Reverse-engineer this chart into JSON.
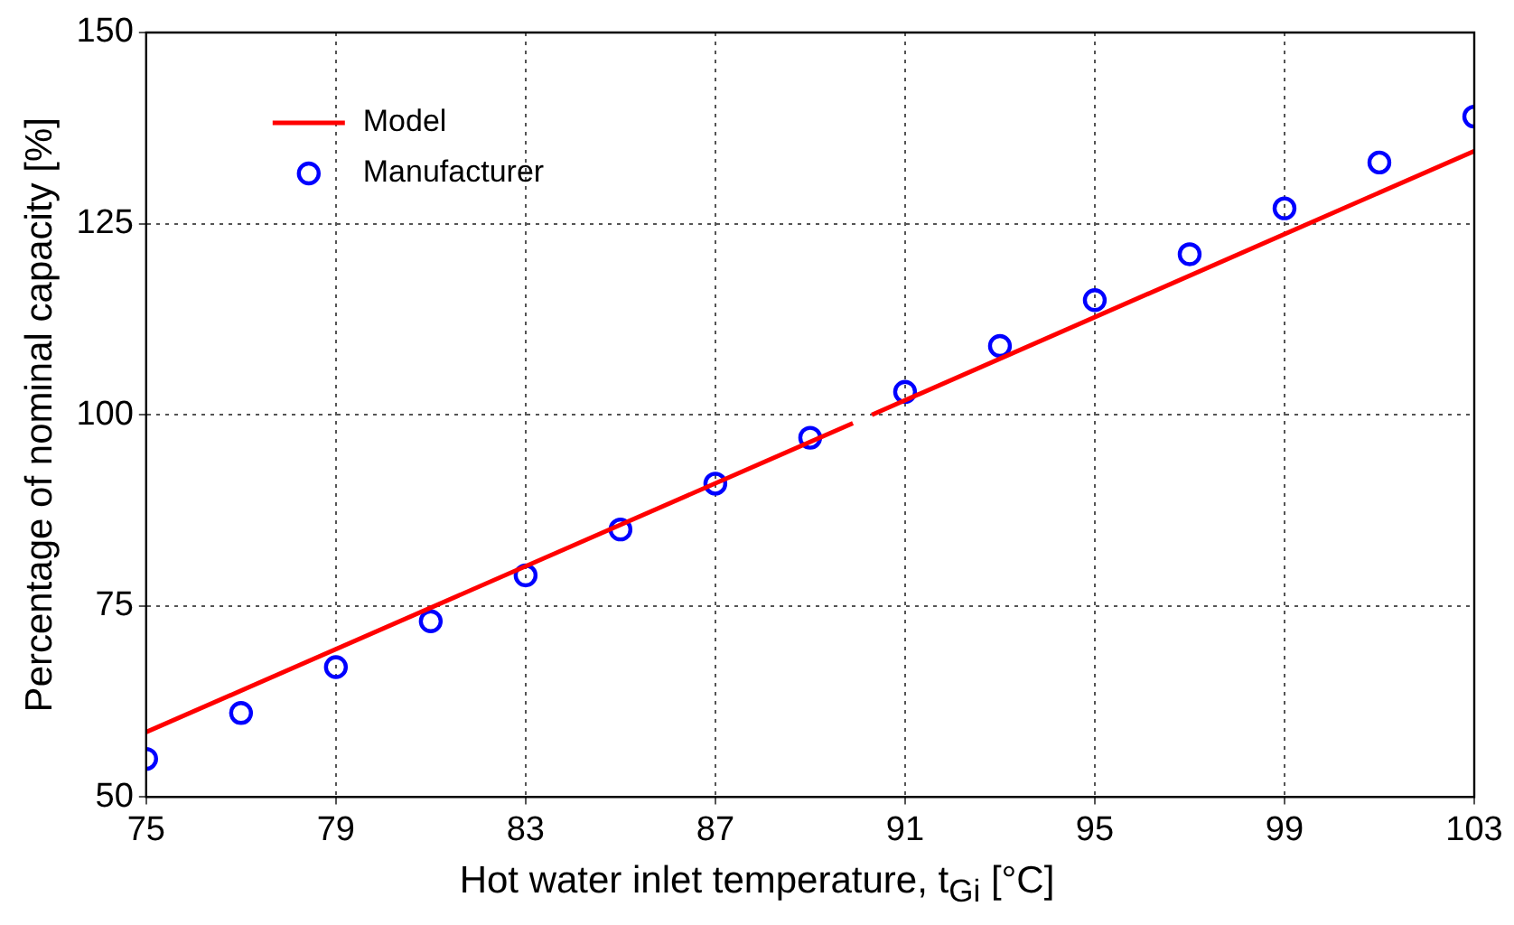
{
  "chart_data": {
    "type": "scatter",
    "xlabel": "Hot water inlet temperature, t$_{Gi}$ [°C]",
    "ylabel": "Percentage of nominal capacity [%]",
    "xlim": [
      75,
      103
    ],
    "xticks": [
      75,
      79,
      83,
      87,
      91,
      95,
      99,
      103
    ],
    "ylim": [
      50,
      150
    ],
    "yticks": [
      50,
      75,
      100,
      125,
      150
    ],
    "grid": true,
    "legend": "top left",
    "series": [
      {
        "name": "Model",
        "type": "line",
        "color": "#ff0000",
        "marker": "none",
        "line_style": "solid",
        "x": [
          75,
          89.9,
          90.1,
          90.3,
          103
        ],
        "values": [
          58.5,
          98.9,
          null,
          100,
          134.5
        ]
      },
      {
        "name": "Manufacturer",
        "type": "scatter",
        "color": "#0000ff",
        "marker": "circle",
        "x": [
          75,
          77,
          79,
          81,
          83,
          85,
          87,
          89,
          91,
          93,
          95,
          97,
          99,
          101,
          103
        ],
        "values": [
          55,
          61,
          67,
          73,
          79,
          85,
          91,
          97,
          103,
          109,
          115,
          121,
          127,
          133,
          139
        ]
      }
    ]
  }
}
